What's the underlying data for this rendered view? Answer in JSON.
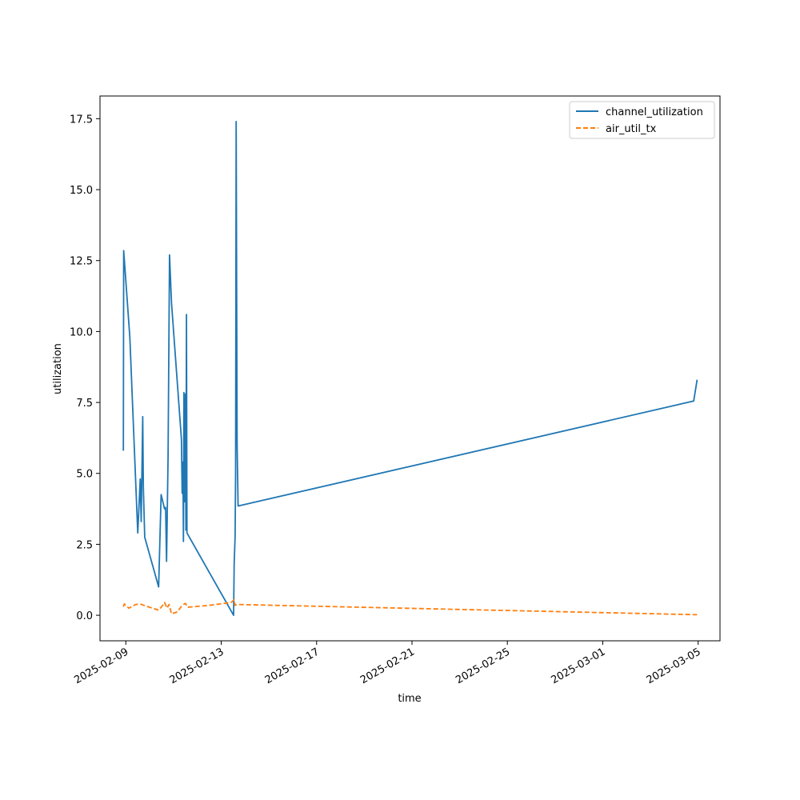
{
  "chart_data": {
    "type": "line",
    "title": "",
    "xlabel": "time",
    "ylabel": "utilization",
    "x_axis_type": "date",
    "xlim": [
      "2025-02-07T22:00",
      "2025-03-05T22:00"
    ],
    "ylim": [
      -0.9,
      18.3
    ],
    "x_ticks": [
      "2025-02-09",
      "2025-02-13",
      "2025-02-17",
      "2025-02-21",
      "2025-02-25",
      "2025-03-01",
      "2025-03-05"
    ],
    "y_ticks": [
      "0.0",
      "2.5",
      "5.0",
      "7.5",
      "10.0",
      "12.5",
      "15.0",
      "17.5"
    ],
    "grid": false,
    "legend_position": "top-right",
    "series": [
      {
        "name": "channel_utilization",
        "color": "#1f77b4",
        "dash": "solid",
        "points": [
          [
            "2025-02-08T21:30",
            5.8
          ],
          [
            "2025-02-08T21:50",
            12.85
          ],
          [
            "2025-02-09T04:00",
            9.8
          ],
          [
            "2025-02-09T12:00",
            2.9
          ],
          [
            "2025-02-09T14:30",
            4.8
          ],
          [
            "2025-02-09T15:30",
            3.3
          ],
          [
            "2025-02-09T17:00",
            7.0
          ],
          [
            "2025-02-09T17:40",
            4.5
          ],
          [
            "2025-02-09T19:00",
            2.75
          ],
          [
            "2025-02-10T09:00",
            1.0
          ],
          [
            "2025-02-10T11:30",
            4.25
          ],
          [
            "2025-02-10T15:00",
            3.75
          ],
          [
            "2025-02-10T16:00",
            3.8
          ],
          [
            "2025-02-10T17:00",
            1.9
          ],
          [
            "2025-02-10T18:30",
            5.6
          ],
          [
            "2025-02-10T20:00",
            12.7
          ],
          [
            "2025-02-10T22:00",
            11.0
          ],
          [
            "2025-02-11T08:00",
            6.2
          ],
          [
            "2025-02-11T08:40",
            4.3
          ],
          [
            "2025-02-11T09:30",
            5.4
          ],
          [
            "2025-02-11T10:00",
            2.6
          ],
          [
            "2025-02-11T10:30",
            7.85
          ],
          [
            "2025-02-11T11:00",
            4.0
          ],
          [
            "2025-02-11T12:00",
            7.8
          ],
          [
            "2025-02-11T12:30",
            3.0
          ],
          [
            "2025-02-11T13:00",
            10.6
          ],
          [
            "2025-02-11T13:30",
            2.9
          ],
          [
            "2025-02-13T12:30",
            0.0
          ],
          [
            "2025-02-13T13:00",
            1.8
          ],
          [
            "2025-02-13T14:00",
            2.8
          ],
          [
            "2025-02-13T14:30",
            5.0
          ],
          [
            "2025-02-13T15:00",
            17.4
          ],
          [
            "2025-02-13T16:00",
            6.0
          ],
          [
            "2025-02-13T17:00",
            3.85
          ],
          [
            "2025-03-04T19:30",
            7.55
          ],
          [
            "2025-03-04T23:00",
            8.3
          ]
        ]
      },
      {
        "name": "air_util_tx",
        "color": "#ff7f0e",
        "dash": "dashed",
        "points": [
          [
            "2025-02-08T21:30",
            0.3
          ],
          [
            "2025-02-08T22:30",
            0.4
          ],
          [
            "2025-02-09T03:00",
            0.25
          ],
          [
            "2025-02-09T10:00",
            0.38
          ],
          [
            "2025-02-09T14:00",
            0.4
          ],
          [
            "2025-02-09T20:00",
            0.33
          ],
          [
            "2025-02-10T09:00",
            0.18
          ],
          [
            "2025-02-10T12:00",
            0.3
          ],
          [
            "2025-02-10T15:00",
            0.45
          ],
          [
            "2025-02-10T17:30",
            0.25
          ],
          [
            "2025-02-10T19:30",
            0.38
          ],
          [
            "2025-02-10T22:00",
            0.05
          ],
          [
            "2025-02-11T04:00",
            0.12
          ],
          [
            "2025-02-11T08:00",
            0.32
          ],
          [
            "2025-02-11T10:00",
            0.38
          ],
          [
            "2025-02-11T12:00",
            0.42
          ],
          [
            "2025-02-11T14:00",
            0.28
          ],
          [
            "2025-02-12T12:00",
            0.35
          ],
          [
            "2025-02-13T10:00",
            0.45
          ],
          [
            "2025-02-13T13:00",
            0.55
          ],
          [
            "2025-02-13T14:00",
            0.35
          ],
          [
            "2025-02-13T16:00",
            0.38
          ],
          [
            "2025-03-04T23:00",
            0.02
          ]
        ]
      }
    ]
  }
}
